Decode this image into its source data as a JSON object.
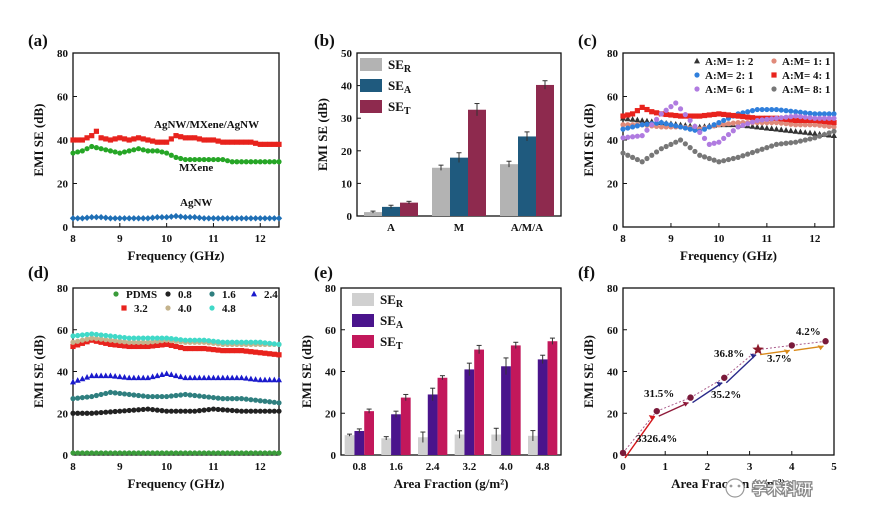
{
  "watermark": {
    "text": "学术科研"
  },
  "chart_data": [
    {
      "panel": "(a)",
      "type": "line",
      "xlabel": "Frequency (GHz)",
      "ylabel": "EMI SE (dB)",
      "xlim": [
        8,
        12.4
      ],
      "ylim": [
        0,
        80
      ],
      "xticks": [
        "8",
        "9",
        "10",
        "11",
        "12"
      ],
      "yticks": [
        "0",
        "20",
        "40",
        "60",
        "80"
      ],
      "series": [
        {
          "name": "AgNW/MXene/AgNW",
          "color": "#e8231d",
          "marker": "square",
          "x": [
            8,
            8.2,
            8.4,
            8.5,
            8.6,
            8.8,
            9,
            9.2,
            9.4,
            9.6,
            9.8,
            10,
            10.2,
            10.4,
            10.6,
            10.8,
            11,
            11.2,
            11.4,
            11.6,
            11.8,
            12,
            12.2,
            12.4
          ],
          "y": [
            40,
            40,
            42,
            44,
            41,
            40,
            41,
            40,
            41,
            40,
            39,
            39,
            42,
            41,
            41,
            40,
            40,
            39,
            39,
            39,
            39,
            38,
            38,
            38
          ]
        },
        {
          "name": "MXene",
          "color": "#26a626",
          "marker": "circle",
          "x": [
            8,
            8.2,
            8.4,
            8.6,
            8.8,
            9,
            9.2,
            9.4,
            9.6,
            9.8,
            10,
            10.2,
            10.4,
            10.6,
            10.8,
            11,
            11.2,
            11.4,
            11.6,
            11.8,
            12,
            12.2,
            12.4
          ],
          "y": [
            34,
            35,
            37,
            36,
            35,
            34,
            35,
            36,
            35,
            35,
            34,
            32,
            31,
            31,
            31,
            31,
            31,
            30,
            30,
            30,
            30,
            30,
            30
          ]
        },
        {
          "name": "AgNW",
          "color": "#1f6fb5",
          "marker": "diamond",
          "x": [
            8,
            8.2,
            8.4,
            8.6,
            8.8,
            9,
            9.2,
            9.4,
            9.6,
            9.8,
            10,
            10.2,
            10.4,
            10.6,
            10.8,
            11,
            11.2,
            11.4,
            11.6,
            11.8,
            12,
            12.2,
            12.4
          ],
          "y": [
            4,
            4,
            4.5,
            4.5,
            4,
            4,
            4,
            4,
            4,
            4.5,
            4.5,
            5,
            4.5,
            4.5,
            4,
            4,
            4,
            4,
            4,
            4,
            4,
            4,
            4
          ]
        }
      ]
    },
    {
      "panel": "(b)",
      "type": "bar",
      "ylabel": "EMI SE (dB)",
      "categories": [
        "A",
        "M",
        "A/M/A"
      ],
      "ylim": [
        0,
        50
      ],
      "yticks": [
        "0",
        "10",
        "20",
        "30",
        "40",
        "50"
      ],
      "series": [
        {
          "name": "SE",
          "sub": "R",
          "color": "#b3b3b3",
          "values": [
            1.2,
            14.8,
            15.9
          ],
          "errors": [
            0.3,
            0.8,
            0.9
          ]
        },
        {
          "name": "SE",
          "sub": "A",
          "color": "#1f5a7e",
          "values": [
            2.8,
            17.9,
            24.4
          ],
          "errors": [
            0.5,
            1.5,
            1.4
          ]
        },
        {
          "name": "SE",
          "sub": "T",
          "color": "#8e2a4e",
          "values": [
            4.1,
            32.6,
            40.2
          ],
          "errors": [
            0.4,
            1.9,
            1.3
          ]
        }
      ]
    },
    {
      "panel": "(c)",
      "type": "line",
      "xlabel": "Frequency (GHz)",
      "ylabel": "EMI SE (dB)",
      "xlim": [
        8,
        12.4
      ],
      "ylim": [
        0,
        80
      ],
      "xticks": [
        "8",
        "9",
        "10",
        "11",
        "12"
      ],
      "yticks": [
        "0",
        "20",
        "40",
        "60",
        "80"
      ],
      "series": [
        {
          "name": "A:M= 1: 2",
          "color": "#333333",
          "marker": "triangle",
          "x": [
            8,
            8.4,
            8.8,
            9.2,
            9.6,
            10,
            10.4,
            10.8,
            11.2,
            11.6,
            12,
            12.4
          ],
          "y": [
            50,
            49,
            48,
            47,
            46,
            47,
            47,
            46,
            45,
            44,
            43,
            42
          ]
        },
        {
          "name": "A:M= 1: 1",
          "color": "#e08a7a",
          "marker": "circle",
          "x": [
            8,
            8.4,
            8.8,
            9.2,
            9.6,
            10,
            10.4,
            10.8,
            11.2,
            11.6,
            12,
            12.4
          ],
          "y": [
            47,
            47,
            46,
            46,
            45,
            47,
            48,
            48,
            48,
            47,
            47,
            46
          ]
        },
        {
          "name": "A:M= 2: 1",
          "color": "#2f7fdc",
          "marker": "circle",
          "x": [
            8,
            8.4,
            8.8,
            9.2,
            9.6,
            10,
            10.4,
            10.8,
            11.2,
            11.6,
            12,
            12.4
          ],
          "y": [
            45,
            47,
            48,
            46,
            44,
            48,
            52,
            54,
            54,
            53,
            52,
            52
          ]
        },
        {
          "name": "A:M= 4: 1",
          "color": "#e8231d",
          "marker": "square",
          "x": [
            8,
            8.2,
            8.4,
            8.6,
            8.8,
            9.2,
            9.6,
            10,
            10.4,
            10.8,
            11.2,
            11.6,
            12,
            12.4
          ],
          "y": [
            51,
            52,
            55,
            53,
            52,
            51,
            51,
            52,
            51,
            50,
            50,
            49,
            49,
            48
          ]
        },
        {
          "name": "A:M= 6: 1",
          "color": "#b07be0",
          "marker": "circle",
          "x": [
            8,
            8.4,
            8.8,
            9.1,
            9.4,
            9.8,
            10,
            10.4,
            10.8,
            11.2,
            11.6,
            12,
            12.4
          ],
          "y": [
            41,
            42,
            52,
            57,
            49,
            38,
            39,
            46,
            49,
            50,
            51,
            50,
            50
          ]
        },
        {
          "name": "A:M= 8: 1",
          "color": "#777777",
          "marker": "circle",
          "x": [
            8,
            8.4,
            8.8,
            9.2,
            9.6,
            10,
            10.4,
            10.8,
            11.2,
            11.6,
            12,
            12.4
          ],
          "y": [
            34,
            30,
            36,
            40,
            33,
            30,
            32,
            35,
            38,
            39,
            41,
            44
          ]
        }
      ]
    },
    {
      "panel": "(d)",
      "type": "line",
      "xlabel": "Frequency (GHz)",
      "ylabel": "EMI SE (dB)",
      "xlim": [
        8,
        12.4
      ],
      "ylim": [
        0,
        80
      ],
      "xticks": [
        "8",
        "9",
        "10",
        "11",
        "12"
      ],
      "yticks": [
        "0",
        "20",
        "40",
        "60",
        "80"
      ],
      "series": [
        {
          "name": "PDMS",
          "color": "#3a9b3a",
          "marker": "circle",
          "x": [
            8,
            12.4
          ],
          "y": [
            1,
            1
          ]
        },
        {
          "name": "0.8",
          "color": "#222222",
          "marker": "circle",
          "x": [
            8,
            8.4,
            9,
            9.6,
            10,
            10.6,
            11,
            11.6,
            12,
            12.4
          ],
          "y": [
            20,
            20,
            21,
            22,
            21,
            21,
            22,
            21,
            21,
            21
          ]
        },
        {
          "name": "1.6",
          "color": "#2f7f7f",
          "marker": "circle",
          "x": [
            8,
            8.4,
            8.8,
            9.2,
            9.6,
            10,
            10.4,
            10.8,
            11.2,
            11.6,
            12,
            12.4
          ],
          "y": [
            27,
            28,
            30,
            29,
            28,
            28,
            29,
            28,
            27,
            27,
            26,
            25
          ]
        },
        {
          "name": "2.4",
          "color": "#1a1acc",
          "marker": "triangle",
          "x": [
            8,
            8.4,
            8.8,
            9.2,
            9.6,
            10,
            10.4,
            10.8,
            11.2,
            11.6,
            12,
            12.4
          ],
          "y": [
            35,
            38,
            38,
            37,
            37,
            39,
            37,
            37,
            37,
            37,
            36,
            36
          ]
        },
        {
          "name": "3.2",
          "color": "#e8231d",
          "marker": "square",
          "x": [
            8,
            8.4,
            8.8,
            9.2,
            9.6,
            10,
            10.4,
            10.8,
            11.2,
            11.6,
            12,
            12.4
          ],
          "y": [
            52,
            55,
            53,
            52,
            52,
            53,
            51,
            51,
            50,
            50,
            49,
            48
          ]
        },
        {
          "name": "4.0",
          "color": "#c4b38c",
          "marker": "circle",
          "x": [
            8,
            8.4,
            8.8,
            9.2,
            9.6,
            10,
            10.4,
            10.8,
            11.2,
            11.6,
            12,
            12.4
          ],
          "y": [
            54,
            56,
            55,
            54,
            54,
            55,
            54,
            54,
            53,
            53,
            53,
            53
          ]
        },
        {
          "name": "4.8",
          "color": "#40d9c8",
          "marker": "circle",
          "x": [
            8,
            8.4,
            8.8,
            9.2,
            9.6,
            10,
            10.4,
            10.8,
            11.2,
            11.6,
            12,
            12.4
          ],
          "y": [
            57,
            58,
            57,
            56,
            56,
            56,
            55,
            55,
            54,
            54,
            54,
            53
          ]
        }
      ]
    },
    {
      "panel": "(e)",
      "type": "bar",
      "xlabel": "Area Fraction (g/m²)",
      "ylabel": "EMI SE (dB)",
      "categories": [
        "0.8",
        "1.6",
        "2.4",
        "3.2",
        "4.0",
        "4.8"
      ],
      "ylim": [
        0,
        80
      ],
      "yticks": [
        "0",
        "20",
        "40",
        "60",
        "80"
      ],
      "series": [
        {
          "name": "SE",
          "sub": "R",
          "color": "#d0d0d0",
          "values": [
            9.5,
            8,
            8.5,
            9.8,
            9.8,
            9.2
          ],
          "errors": [
            0.5,
            0.8,
            2.5,
            1.8,
            3,
            2.5
          ]
        },
        {
          "name": "SE",
          "sub": "A",
          "color": "#4a148c",
          "values": [
            11.5,
            19.5,
            29,
            41,
            42.5,
            45.8
          ],
          "errors": [
            1,
            1.5,
            3,
            3,
            4,
            2
          ]
        },
        {
          "name": "SE",
          "sub": "T",
          "color": "#c2185b",
          "values": [
            21,
            27.5,
            37,
            50.5,
            52.5,
            54.5
          ],
          "errors": [
            1,
            1.5,
            1,
            2,
            1.5,
            1.5
          ]
        }
      ]
    },
    {
      "panel": "(f)",
      "type": "scatter",
      "xlabel": "Area Fraction (g/m²)",
      "ylabel": "EMI SE (dB)",
      "xlim": [
        0,
        5
      ],
      "ylim": [
        0,
        80
      ],
      "xticks": [
        "0",
        "1",
        "2",
        "3",
        "4",
        "5"
      ],
      "yticks": [
        "0",
        "20",
        "40",
        "60",
        "80"
      ],
      "x": [
        0,
        0.8,
        1.6,
        2.4,
        3.2,
        4.0,
        4.8
      ],
      "y": [
        1,
        21,
        27.5,
        37,
        50.5,
        52.5,
        54.5
      ],
      "star_at": 3.2,
      "labels": [
        "3326.4%",
        "31.5%",
        "35.2%",
        "36.8%",
        "3.7%",
        "4.2%"
      ]
    }
  ]
}
